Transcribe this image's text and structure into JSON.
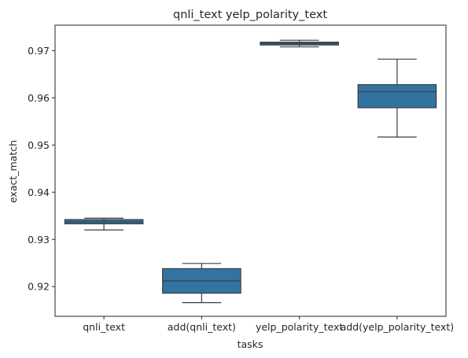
{
  "chart_data": {
    "type": "box",
    "title": "qnli_text yelp_polarity_text",
    "xlabel": "tasks",
    "ylabel": "exact_match",
    "categories": [
      "qnli_text",
      "add(qnli_text)",
      "yelp_polarity_text",
      "add(yelp_polarity_text)"
    ],
    "boxes": [
      {
        "whislo": 0.932,
        "q1": 0.9333,
        "med": 0.9337,
        "q3": 0.9342,
        "whishi": 0.9345
      },
      {
        "whislo": 0.9166,
        "q1": 0.9186,
        "med": 0.9212,
        "q3": 0.9238,
        "whishi": 0.9249
      },
      {
        "whislo": 0.9708,
        "q1": 0.9712,
        "med": 0.9715,
        "q3": 0.9718,
        "whishi": 0.9722
      },
      {
        "whislo": 0.9517,
        "q1": 0.9579,
        "med": 0.9613,
        "q3": 0.9628,
        "whishi": 0.9682
      }
    ],
    "yticks": [
      0.92,
      0.93,
      0.94,
      0.95,
      0.96,
      0.97
    ],
    "yticklabels": [
      "0.92",
      "0.93",
      "0.94",
      "0.95",
      "0.96",
      "0.97"
    ],
    "ylim": [
      0.9137,
      0.9754
    ],
    "box_color": "#3274a1",
    "line_color": "#3d3d3d",
    "grid": false,
    "legend": false
  }
}
